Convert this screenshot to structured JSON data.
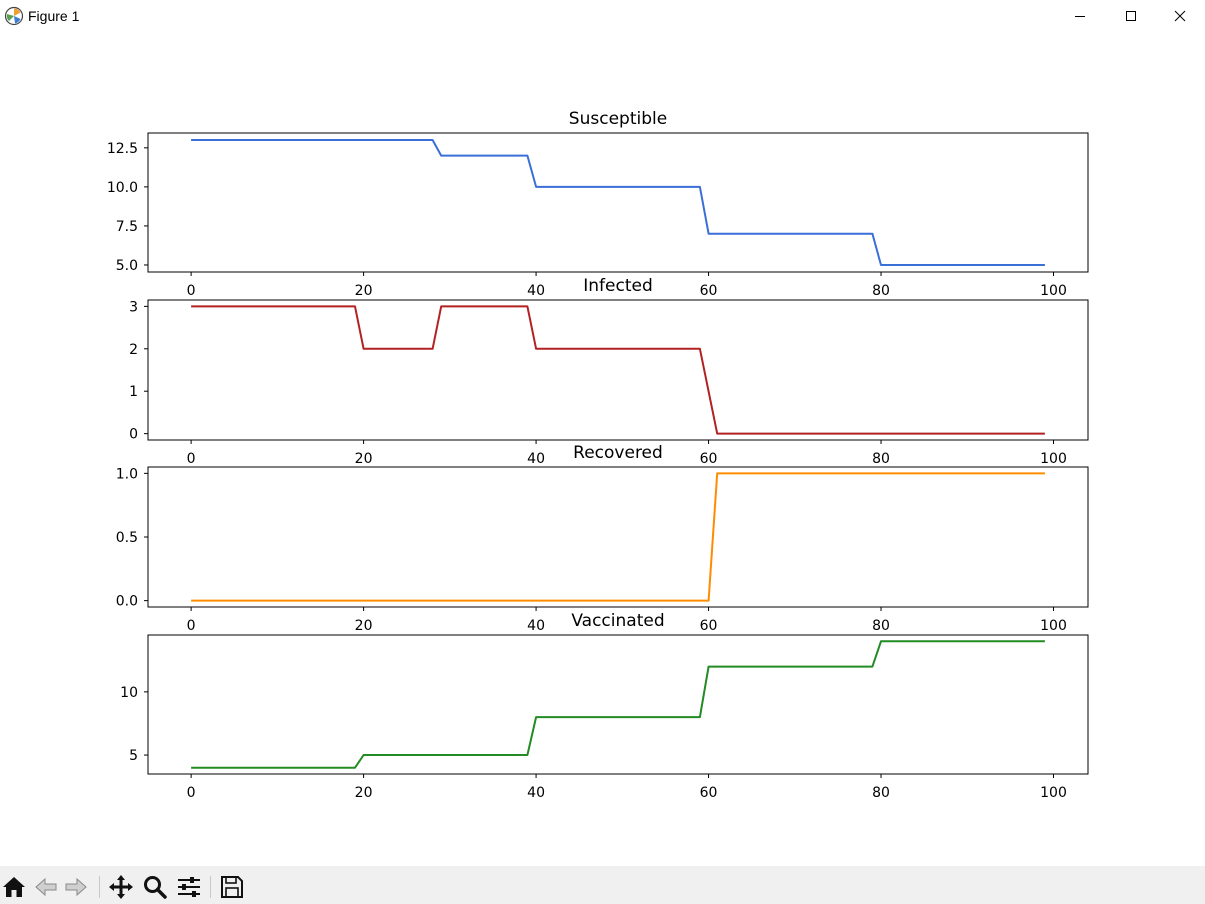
{
  "window": {
    "title": "Figure 1",
    "app_icon": "matplotlib-icon",
    "controls": [
      "minimize-icon",
      "maximize-icon",
      "close-icon"
    ]
  },
  "toolbar": {
    "buttons": [
      "home-icon",
      "back-arrow-icon",
      "forward-arrow-icon",
      "pan-move-icon",
      "zoom-magnifier-icon",
      "configure-subplots-icon",
      "save-floppy-icon"
    ]
  },
  "chart_data": [
    {
      "type": "line",
      "title": "Susceptible",
      "color": "#3a6fd8",
      "xlim": [
        -5,
        104
      ],
      "ylim": [
        4.55,
        13.45
      ],
      "xticks": [
        0,
        20,
        40,
        60,
        80,
        100
      ],
      "yticks": [
        5.0,
        7.5,
        10.0,
        12.5
      ],
      "ytick_labels": [
        "5.0",
        "7.5",
        "10.0",
        "12.5"
      ],
      "series": [
        {
          "points": [
            [
              0,
              13
            ],
            [
              28,
              13
            ],
            [
              29,
              12
            ],
            [
              39,
              12
            ],
            [
              40,
              10
            ],
            [
              59,
              10
            ],
            [
              60,
              7
            ],
            [
              79,
              7
            ],
            [
              80,
              5
            ],
            [
              99,
              5
            ]
          ]
        }
      ]
    },
    {
      "type": "line",
      "title": "Infected",
      "color": "#b22222",
      "xlim": [
        -5,
        104
      ],
      "ylim": [
        -0.15,
        3.15
      ],
      "xticks": [
        0,
        20,
        40,
        60,
        80,
        100
      ],
      "yticks": [
        0,
        1,
        2,
        3
      ],
      "ytick_labels": [
        "0",
        "1",
        "2",
        "3"
      ],
      "series": [
        {
          "points": [
            [
              0,
              3
            ],
            [
              19,
              3
            ],
            [
              20,
              2
            ],
            [
              28,
              2
            ],
            [
              29,
              3
            ],
            [
              39,
              3
            ],
            [
              40,
              2
            ],
            [
              59,
              2
            ],
            [
              61,
              0
            ],
            [
              99,
              0
            ]
          ]
        }
      ]
    },
    {
      "type": "line",
      "title": "Recovered",
      "color": "#ff8c00",
      "xlim": [
        -5,
        104
      ],
      "ylim": [
        -0.05,
        1.05
      ],
      "xticks": [
        0,
        20,
        40,
        60,
        80,
        100
      ],
      "yticks": [
        0.0,
        0.5,
        1.0
      ],
      "ytick_labels": [
        "0.0",
        "0.5",
        "1.0"
      ],
      "series": [
        {
          "points": [
            [
              0,
              0
            ],
            [
              60,
              0
            ],
            [
              61,
              1
            ],
            [
              99,
              1
            ]
          ]
        }
      ]
    },
    {
      "type": "line",
      "title": "Vaccinated",
      "color": "#228b22",
      "xlim": [
        -5,
        104
      ],
      "ylim": [
        3.5,
        14.5
      ],
      "xticks": [
        0,
        20,
        40,
        60,
        80,
        100
      ],
      "yticks": [
        5,
        10
      ],
      "ytick_labels": [
        "5",
        "10"
      ],
      "series": [
        {
          "points": [
            [
              0,
              4
            ],
            [
              19,
              4
            ],
            [
              20,
              5
            ],
            [
              39,
              5
            ],
            [
              40,
              8
            ],
            [
              59,
              8
            ],
            [
              60,
              12
            ],
            [
              79,
              12
            ],
            [
              80,
              14
            ],
            [
              99,
              14
            ]
          ]
        }
      ]
    }
  ]
}
